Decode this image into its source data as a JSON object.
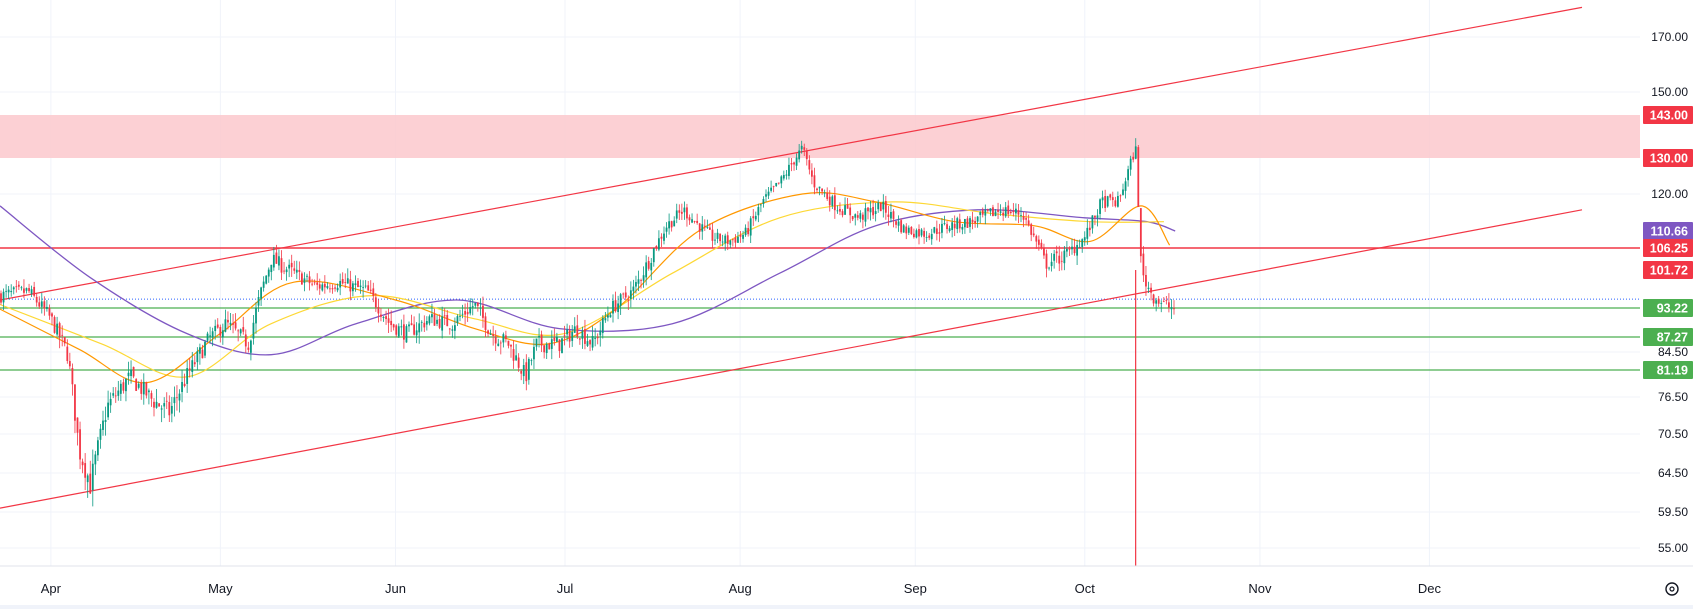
{
  "chart_data": {
    "type": "candlestick",
    "x_ticks": [
      "Apr",
      "May",
      "Jun",
      "Jul",
      "Aug",
      "Sep",
      "Oct",
      "Nov",
      "Dec"
    ],
    "y_ticks": [
      "170.00",
      "150.00",
      "120.00",
      "84.50",
      "76.50",
      "70.50",
      "64.50",
      "59.50",
      "55.00"
    ],
    "price_labels": [
      {
        "text": "143.00",
        "color": "#f23645"
      },
      {
        "text": "130.00",
        "color": "#f23645"
      },
      {
        "text": "110.66",
        "color": "#7e57c2"
      },
      {
        "text": "106.25",
        "color": "#f23645"
      },
      {
        "text": "101.72",
        "color": "#f23645"
      },
      {
        "text": "93.22",
        "color": "#4caf50"
      },
      {
        "text": "87.27",
        "color": "#4caf50"
      },
      {
        "text": "81.19",
        "color": "#4caf50"
      }
    ],
    "resistance_zone": [
      130,
      143
    ],
    "horizontal_levels": [
      {
        "value": 106.25,
        "color": "#f23645"
      },
      {
        "value": 93.22,
        "color": "#4caf50"
      },
      {
        "value": 87.27,
        "color": "#4caf50"
      },
      {
        "value": 81.19,
        "color": "#4caf50"
      }
    ],
    "trend_lines": [
      {
        "points": [
          [
            "2024-03-23",
            95
          ],
          [
            "2024-12-28",
            182
          ]
        ],
        "color": "#f23645"
      },
      {
        "points": [
          [
            "2024-03-23",
            60
          ],
          [
            "2024-12-28",
            116
          ]
        ],
        "color": "#f23645"
      }
    ],
    "colors": {
      "up": "#089981",
      "down": "#f23645",
      "ma_fast": "#ff9800",
      "ma_mid": "#fdd835",
      "ma_slow": "#7e57c2",
      "zone": "#fcc8cc"
    },
    "series_path": [
      [
        "2024-03-23",
        96
      ],
      [
        "2024-03-28",
        97
      ],
      [
        "2024-04-01",
        91
      ],
      [
        "2024-04-04",
        84
      ],
      [
        "2024-04-06",
        68
      ],
      [
        "2024-04-08",
        63
      ],
      [
        "2024-04-11",
        75
      ],
      [
        "2024-04-15",
        80
      ],
      [
        "2024-04-19",
        76
      ],
      [
        "2024-04-22",
        74
      ],
      [
        "2024-04-25",
        80
      ],
      [
        "2024-04-29",
        87
      ],
      [
        "2024-05-02",
        90
      ],
      [
        "2024-05-06",
        86
      ],
      [
        "2024-05-08",
        96
      ],
      [
        "2024-05-10",
        104
      ],
      [
        "2024-05-14",
        101
      ],
      [
        "2024-05-18",
        98
      ],
      [
        "2024-05-22",
        99
      ],
      [
        "2024-05-27",
        97
      ],
      [
        "2024-05-31",
        90
      ],
      [
        "2024-06-03",
        88
      ],
      [
        "2024-06-07",
        91
      ],
      [
        "2024-06-11",
        90
      ],
      [
        "2024-06-15",
        94
      ],
      [
        "2024-06-18",
        88
      ],
      [
        "2024-06-21",
        86
      ],
      [
        "2024-06-24",
        80
      ],
      [
        "2024-06-26",
        86
      ],
      [
        "2024-06-30",
        86
      ],
      [
        "2024-07-03",
        89
      ],
      [
        "2024-07-06",
        86
      ],
      [
        "2024-07-09",
        93
      ],
      [
        "2024-07-13",
        97
      ],
      [
        "2024-07-16",
        104
      ],
      [
        "2024-07-19",
        112
      ],
      [
        "2024-07-22",
        116
      ],
      [
        "2024-07-24",
        113
      ],
      [
        "2024-07-27",
        109
      ],
      [
        "2024-07-30",
        108
      ],
      [
        "2024-08-02",
        110
      ],
      [
        "2024-08-05",
        118
      ],
      [
        "2024-08-08",
        123
      ],
      [
        "2024-08-10",
        128
      ],
      [
        "2024-08-12",
        133
      ],
      [
        "2024-08-14",
        123
      ],
      [
        "2024-08-18",
        117
      ],
      [
        "2024-08-22",
        114
      ],
      [
        "2024-08-26",
        117
      ],
      [
        "2024-08-30",
        111
      ],
      [
        "2024-09-03",
        110
      ],
      [
        "2024-09-07",
        112
      ],
      [
        "2024-09-11",
        113
      ],
      [
        "2024-09-16",
        116
      ],
      [
        "2024-09-20",
        115
      ],
      [
        "2024-09-24",
        103
      ],
      [
        "2024-09-28",
        105
      ],
      [
        "2024-10-01",
        109
      ],
      [
        "2024-10-04",
        118
      ],
      [
        "2024-10-07",
        118
      ],
      [
        "2024-10-10",
        133
      ],
      [
        "2024-10-11",
        101
      ],
      [
        "2024-10-13",
        96
      ],
      [
        "2024-10-15",
        94
      ],
      [
        "2024-10-17",
        93
      ]
    ],
    "ma_fast_path": [
      [
        "2024-03-23",
        93
      ],
      [
        "2024-04-06",
        85
      ],
      [
        "2024-04-18",
        79
      ],
      [
        "2024-05-01",
        88
      ],
      [
        "2024-05-14",
        99
      ],
      [
        "2024-06-01",
        95
      ],
      [
        "2024-06-15",
        89
      ],
      [
        "2024-06-28",
        86
      ],
      [
        "2024-07-10",
        93
      ],
      [
        "2024-07-25",
        111
      ],
      [
        "2024-08-12",
        120
      ],
      [
        "2024-08-25",
        118
      ],
      [
        "2024-09-08",
        113
      ],
      [
        "2024-09-22",
        112
      ],
      [
        "2024-10-02",
        108
      ],
      [
        "2024-10-11",
        117
      ],
      [
        "2024-10-16",
        107
      ]
    ],
    "ma_mid_path": [
      [
        "2024-03-23",
        94
      ],
      [
        "2024-04-10",
        86
      ],
      [
        "2024-04-25",
        80
      ],
      [
        "2024-05-10",
        90
      ],
      [
        "2024-05-28",
        96
      ],
      [
        "2024-06-15",
        91
      ],
      [
        "2024-07-01",
        88
      ],
      [
        "2024-07-20",
        101
      ],
      [
        "2024-08-08",
        114
      ],
      [
        "2024-08-28",
        118
      ],
      [
        "2024-09-15",
        115
      ],
      [
        "2024-10-02",
        113
      ],
      [
        "2024-10-15",
        113
      ]
    ],
    "ma_slow_path": [
      [
        "2024-03-23",
        117
      ],
      [
        "2024-04-08",
        100
      ],
      [
        "2024-04-25",
        88
      ],
      [
        "2024-05-10",
        84
      ],
      [
        "2024-05-25",
        90
      ],
      [
        "2024-06-12",
        95
      ],
      [
        "2024-06-30",
        89
      ],
      [
        "2024-07-20",
        90
      ],
      [
        "2024-08-08",
        101
      ],
      [
        "2024-08-25",
        112
      ],
      [
        "2024-09-12",
        116
      ],
      [
        "2024-10-01",
        114
      ],
      [
        "2024-10-12",
        113
      ],
      [
        "2024-10-17",
        110.66
      ]
    ],
    "spike_date": "2024-10-10"
  }
}
